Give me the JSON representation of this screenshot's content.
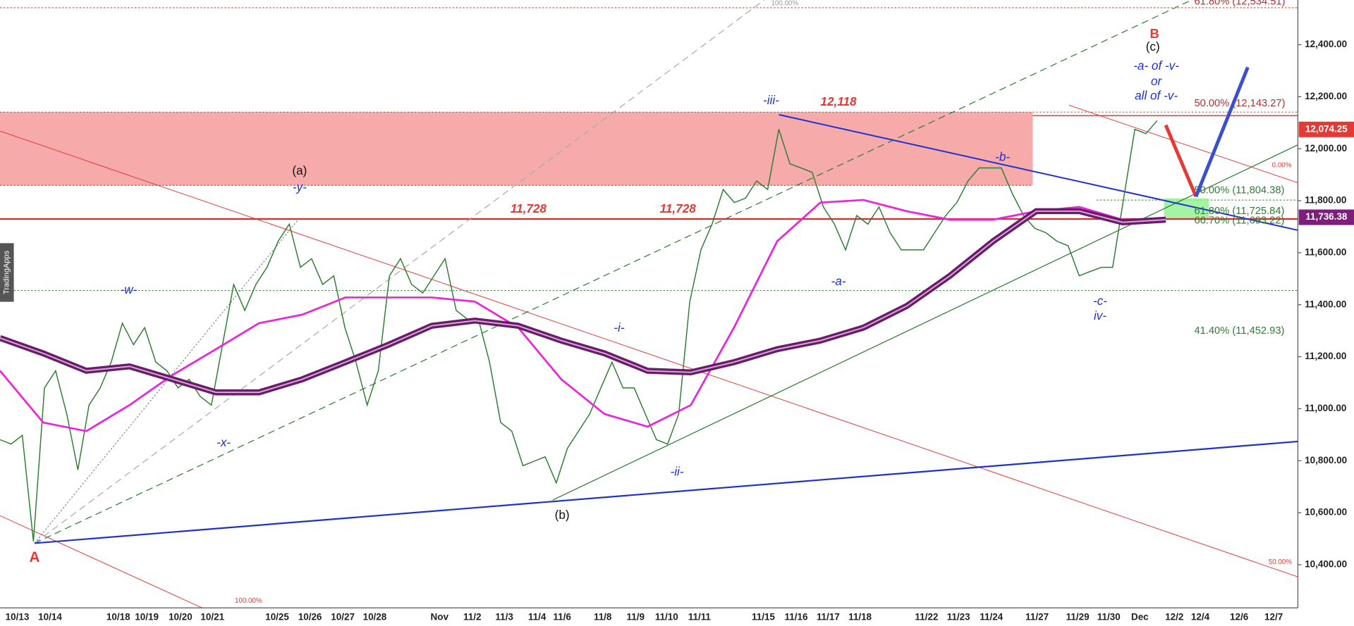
{
  "chart_data": {
    "type": "line",
    "watermark": "TradingApps",
    "ylim": [
      10234,
      12572
    ],
    "yticks": [
      {
        "value": 10400,
        "label": "10,400.00"
      },
      {
        "value": 10600,
        "label": "10,600.00"
      },
      {
        "value": 10800,
        "label": "10,800.00"
      },
      {
        "value": 11000,
        "label": "11,000.00"
      },
      {
        "value": 11200,
        "label": "11,200.00"
      },
      {
        "value": 11400,
        "label": "11,400.00"
      },
      {
        "value": 11600,
        "label": "11,600.00"
      },
      {
        "value": 11800,
        "label": "11,800.00"
      },
      {
        "value": 12000,
        "label": "12,000.00"
      },
      {
        "value": 12200,
        "label": "12,200.00"
      },
      {
        "value": 12400,
        "label": "12,400.00"
      }
    ],
    "x_labels": [
      "10/13",
      "10/14",
      "10/18",
      "10/19",
      "10/20",
      "10/21",
      "10/25",
      "10/26",
      "10/27",
      "10/28",
      "Nov",
      "11/2",
      "11/3",
      "11/4",
      "11/6",
      "11/8",
      "11/9",
      "11/10",
      "11/11",
      "11/15",
      "11/16",
      "11/17",
      "11/18",
      "11/22",
      "11/23",
      "11/24",
      "11/27",
      "11/29",
      "11/30",
      "Dec",
      "12/2",
      "12/4",
      "12/6",
      "12/7"
    ],
    "series": [
      {
        "color": "#2e7d32",
        "values": [
          10881,
          10864,
          10898,
          10490,
          11080,
          11146,
          10980,
          10765,
          11014,
          11080,
          11179,
          11329,
          11246,
          11312,
          11179,
          11146,
          11080,
          11113,
          11047,
          11014,
          11246,
          11478,
          11378,
          11478,
          11544,
          11644,
          11710,
          11544,
          11577,
          11478,
          11511,
          11312,
          11179,
          11014,
          11146,
          11511,
          11577,
          11478,
          11445,
          11511,
          11577,
          11378,
          11345,
          11345,
          11179,
          10947,
          10914,
          10781,
          10798,
          10815,
          10715,
          10848,
          10914,
          10980,
          11080,
          11179,
          11080,
          11080,
          10980,
          10881,
          10864,
          10980,
          11412,
          11611,
          11710,
          11843,
          11793,
          11810,
          11876,
          11843,
          12075,
          11942,
          11926,
          11909,
          11776,
          11710,
          11611,
          11743,
          11710,
          11776,
          11677,
          11611,
          11611,
          11611,
          11677,
          11743,
          11793,
          11876,
          11926,
          11926,
          11926,
          11826,
          11743,
          11694,
          11677,
          11644,
          11627,
          11511,
          11528,
          11544,
          11544,
          11810,
          12075,
          12058,
          12108
        ]
      },
      {
        "color": "#ee22dd",
        "values": [
          11146,
          10947,
          10914,
          11014,
          11130,
          11229,
          11329,
          11362,
          11428,
          11428,
          11428,
          11412,
          11312,
          11113,
          10980,
          10931,
          11014,
          11312,
          11644,
          11793,
          11803,
          11760,
          11727,
          11727,
          11760,
          11776,
          11727,
          11727
        ]
      },
      {
        "color": "#6a1b6a",
        "values": [
          11272,
          11213,
          11146,
          11163,
          11113,
          11063,
          11063,
          11113,
          11179,
          11246,
          11319,
          11339,
          11319,
          11262,
          11213,
          11146,
          11140,
          11179,
          11229,
          11262,
          11312,
          11395,
          11511,
          11644,
          11760,
          11760,
          11717,
          11727
        ]
      }
    ],
    "price_labels": [
      {
        "value": 12074.25,
        "label": "12,074.25",
        "color": "#e53935"
      },
      {
        "value": 11736.38,
        "label": "11,736.38",
        "color": "#7b1f7b"
      }
    ],
    "annotations": [
      {
        "text": "A",
        "color": "#e53935"
      },
      {
        "text": "B",
        "color": "#e53935"
      },
      {
        "text": "(c)",
        "color": "#111"
      },
      {
        "text": "-a- of -v-",
        "color": "#1f2fd6"
      },
      {
        "text": "or",
        "color": "#1f2fd6"
      },
      {
        "text": "all of -v-",
        "color": "#1f2fd6"
      },
      {
        "text": "(a)",
        "color": "#111"
      },
      {
        "text": "-y-",
        "color": "#1f2fd6"
      },
      {
        "text": "-w-",
        "color": "#1f2fd6"
      },
      {
        "text": "-x-",
        "color": "#1f2fd6"
      },
      {
        "text": "(b)",
        "color": "#111"
      },
      {
        "text": "-i-",
        "color": "#1f2fd6"
      },
      {
        "text": "-ii-",
        "color": "#1f2fd6"
      },
      {
        "text": "-iii-",
        "color": "#1f2fd6"
      },
      {
        "text": "12,118",
        "color": "#e53935"
      },
      {
        "text": "11,728",
        "color": "#e53935"
      },
      {
        "text": "11,728",
        "color": "#e53935"
      },
      {
        "text": "-a-",
        "color": "#1f2fd6"
      },
      {
        "text": "-b-",
        "color": "#1f2fd6"
      },
      {
        "text": "-c-",
        "color": "#1f2fd6"
      },
      {
        "text": "iv-",
        "color": "#1f2fd6"
      },
      {
        "text": "50.00% (12,143.27)",
        "color": "#b03030"
      },
      {
        "text": "50.00% (11,804.38)",
        "color": "#2e7d32"
      },
      {
        "text": "61.80% (11,725.84)",
        "color": "#2e7d32"
      },
      {
        "text": "66.70% (11,693.22)",
        "color": "#2e7d32"
      },
      {
        "text": "41.40% (11,452.93)",
        "color": "#2e7d32"
      },
      {
        "text": "61.80% (12,534.51)",
        "color": "#b03030"
      },
      {
        "text": "100.00%",
        "color": "#999"
      },
      {
        "text": "100.00%",
        "color": "#e53935"
      },
      {
        "text": "50.00%",
        "color": "#e53935"
      },
      {
        "text": "0.00%",
        "color": "#e53935"
      }
    ]
  }
}
